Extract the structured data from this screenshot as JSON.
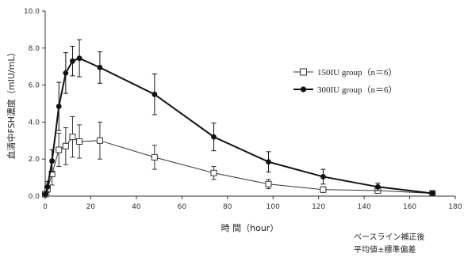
{
  "chart_data": {
    "type": "line",
    "xlabel": "時 間（hour）",
    "ylabel": "血清中FSH濃度（mIU/mL）",
    "xlim": [
      0,
      180
    ],
    "ylim": [
      0,
      10
    ],
    "xticks": [
      "0",
      "20",
      "40",
      "60",
      "80",
      "100",
      "120",
      "140",
      "160",
      "180"
    ],
    "yticks": [
      "0.0",
      "2.0",
      "4.0",
      "6.0",
      "8.0",
      "10.0"
    ],
    "legend_position": "upper-right",
    "series": [
      {
        "name": "150IU group（n＝6）",
        "marker": "open-square",
        "color": "#333333",
        "x": [
          0,
          1,
          3,
          6,
          9,
          12,
          15,
          24,
          48,
          74,
          98,
          122,
          146,
          170
        ],
        "y": [
          0.1,
          0.4,
          1.2,
          2.5,
          2.7,
          3.2,
          2.95,
          3.0,
          2.1,
          1.25,
          0.65,
          0.35,
          0.3,
          0.15
        ],
        "err": [
          0.05,
          0.3,
          0.6,
          0.9,
          1.0,
          1.1,
          0.9,
          1.0,
          0.65,
          0.35,
          0.25,
          0.15,
          0.15,
          0.1
        ]
      },
      {
        "name": "300IU group（n＝6）",
        "marker": "filled-circle",
        "color": "#111111",
        "x": [
          0,
          1,
          3,
          6,
          9,
          12,
          15,
          24,
          48,
          74,
          98,
          122,
          146,
          170
        ],
        "y": [
          0.1,
          0.5,
          1.9,
          4.85,
          6.65,
          7.3,
          7.45,
          6.95,
          5.5,
          3.2,
          1.85,
          1.05,
          0.5,
          0.15
        ],
        "err": [
          0.05,
          0.3,
          0.6,
          1.3,
          1.1,
          0.8,
          1.0,
          0.85,
          1.1,
          0.75,
          0.55,
          0.4,
          0.2,
          0.1
        ]
      }
    ]
  },
  "notes": [
    "ベースライン補正後",
    "平均値±標準偏差"
  ]
}
